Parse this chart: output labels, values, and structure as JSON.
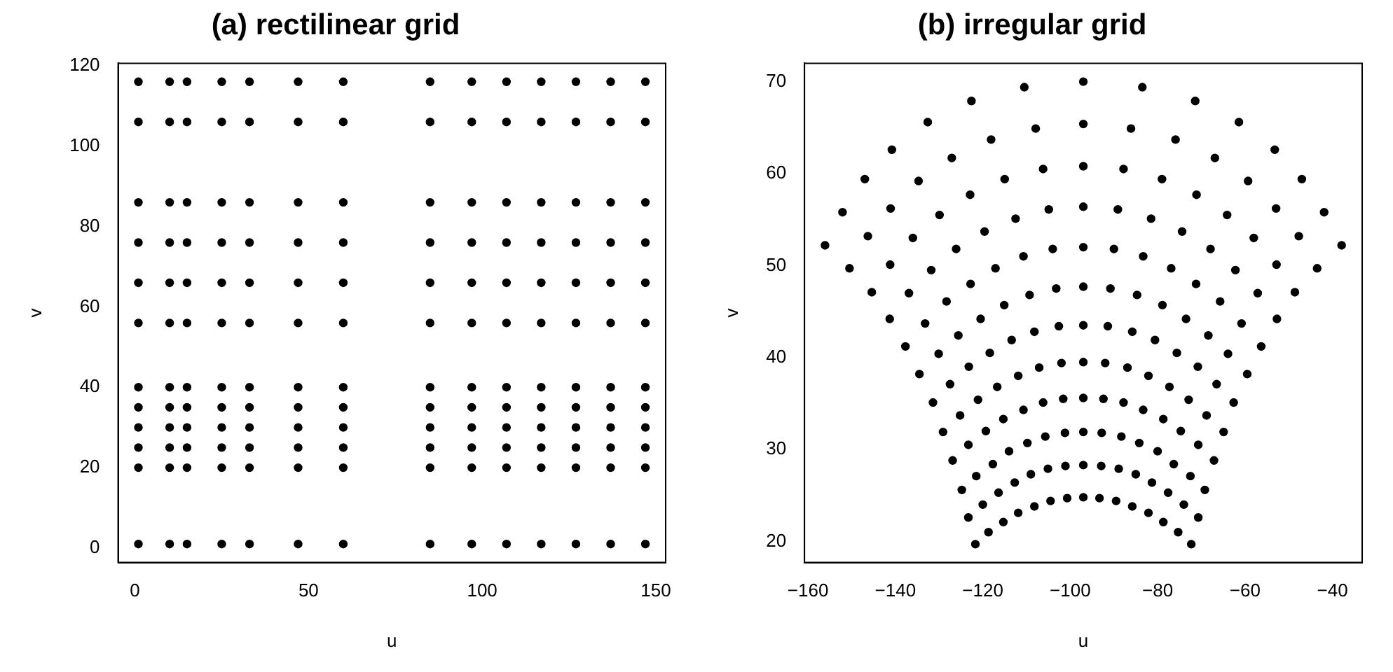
{
  "chart_data": [
    {
      "type": "scatter",
      "title": "(a) rectilinear grid",
      "xlabel": "u",
      "ylabel": "v",
      "marker": "circle",
      "xlim": [
        -4.84,
        152.84
      ],
      "ylim": [
        -3.6,
        120.6
      ],
      "xticks": [
        0,
        50,
        100,
        150
      ],
      "yticks": [
        0,
        20,
        40,
        60,
        80,
        100,
        120
      ],
      "series": [
        {
          "color": "#000000",
          "x": [
            1,
            10,
            15,
            25,
            33,
            47,
            60,
            85,
            97,
            107,
            117,
            127,
            137,
            147,
            1,
            10,
            15,
            25,
            33,
            47,
            60,
            85,
            97,
            107,
            117,
            127,
            137,
            147,
            1,
            10,
            15,
            25,
            33,
            47,
            60,
            85,
            97,
            107,
            117,
            127,
            137,
            147,
            1,
            10,
            15,
            25,
            33,
            47,
            60,
            85,
            97,
            107,
            117,
            127,
            137,
            147,
            1,
            10,
            15,
            25,
            33,
            47,
            60,
            85,
            97,
            107,
            117,
            127,
            137,
            147,
            1,
            10,
            15,
            25,
            33,
            47,
            60,
            85,
            97,
            107,
            117,
            127,
            137,
            147,
            1,
            10,
            15,
            25,
            33,
            47,
            60,
            85,
            97,
            107,
            117,
            127,
            137,
            147,
            1,
            10,
            15,
            25,
            33,
            47,
            60,
            85,
            97,
            107,
            117,
            127,
            137,
            147,
            1,
            10,
            15,
            25,
            33,
            47,
            60,
            85,
            97,
            107,
            117,
            127,
            137,
            147,
            1,
            10,
            15,
            25,
            33,
            47,
            60,
            85,
            97,
            107,
            117,
            127,
            137,
            147,
            1,
            10,
            15,
            25,
            33,
            47,
            60,
            85,
            97,
            107,
            117,
            127,
            137,
            147,
            1,
            10,
            15,
            25,
            33,
            47,
            60,
            85,
            97,
            107,
            117,
            127,
            137,
            147
          ],
          "values": [
            1,
            1,
            1,
            1,
            1,
            1,
            1,
            1,
            1,
            1,
            1,
            1,
            1,
            1,
            20,
            20,
            20,
            20,
            20,
            20,
            20,
            20,
            20,
            20,
            20,
            20,
            20,
            20,
            25,
            25,
            25,
            25,
            25,
            25,
            25,
            25,
            25,
            25,
            25,
            25,
            25,
            25,
            30,
            30,
            30,
            30,
            30,
            30,
            30,
            30,
            30,
            30,
            30,
            30,
            30,
            30,
            35,
            35,
            35,
            35,
            35,
            35,
            35,
            35,
            35,
            35,
            35,
            35,
            35,
            35,
            40,
            40,
            40,
            40,
            40,
            40,
            40,
            40,
            40,
            40,
            40,
            40,
            40,
            40,
            56,
            56,
            56,
            56,
            56,
            56,
            56,
            56,
            56,
            56,
            56,
            56,
            56,
            56,
            66,
            66,
            66,
            66,
            66,
            66,
            66,
            66,
            66,
            66,
            66,
            66,
            66,
            66,
            76,
            76,
            76,
            76,
            76,
            76,
            76,
            76,
            76,
            76,
            76,
            76,
            76,
            76,
            86,
            86,
            86,
            86,
            86,
            86,
            86,
            86,
            86,
            86,
            86,
            86,
            86,
            86,
            106,
            106,
            106,
            106,
            106,
            106,
            106,
            106,
            106,
            106,
            106,
            106,
            106,
            106,
            116,
            116,
            116,
            116,
            116,
            116,
            116,
            116,
            116,
            116,
            116,
            116,
            116,
            116
          ]
        }
      ]
    },
    {
      "type": "scatter",
      "title": "(b) irregular grid",
      "xlabel": "u",
      "ylabel": "v",
      "marker": "circle",
      "xlim": [
        -160.8,
        -33.2
      ],
      "ylim": [
        17.7,
        72.0
      ],
      "xticks": [
        -160,
        -140,
        -120,
        -100,
        -80,
        -60,
        -40
      ],
      "yticks": [
        20,
        30,
        40,
        50,
        60,
        70
      ],
      "series": [
        {
          "color": "#000000",
          "x": [
            -121.7,
            -118.7,
            -115.3,
            -111.9,
            -108.2,
            -104.5,
            -100.7,
            -97,
            -93.3,
            -89.5,
            -85.8,
            -82.1,
            -78.7,
            -75.3,
            -72.3,
            -123.3,
            -120.0,
            -116.4,
            -112.7,
            -109.0,
            -105.1,
            -101.1,
            -97,
            -92.9,
            -88.9,
            -85.0,
            -81.3,
            -77.6,
            -74.0,
            -70.7,
            -124.8,
            -121.5,
            -117.7,
            -114.0,
            -109.8,
            -105.7,
            -101.2,
            -97,
            -92.8,
            -88.3,
            -84.2,
            -80.0,
            -76.3,
            -72.5,
            -69.2,
            -126.9,
            -123.3,
            -119.3,
            -115.3,
            -110.7,
            -106.2,
            -101.6,
            -97,
            -92.4,
            -87.8,
            -83.3,
            -78.7,
            -74.7,
            -70.7,
            -67.1,
            -129.1,
            -125.2,
            -121.1,
            -116.7,
            -111.9,
            -107.1,
            -102.0,
            -97,
            -92.0,
            -86.9,
            -82.1,
            -77.3,
            -72.9,
            -68.8,
            -64.9,
            -131.4,
            -127.5,
            -123.2,
            -118.4,
            -113.4,
            -108.2,
            -102.6,
            -97,
            -91.4,
            -85.8,
            -80.6,
            -75.6,
            -70.8,
            -66.5,
            -62.6,
            -134.5,
            -130.1,
            -125.6,
            -120.5,
            -115.1,
            -109.3,
            -103.2,
            -97,
            -90.8,
            -84.7,
            -78.9,
            -73.5,
            -68.4,
            -63.9,
            -59.5,
            -137.7,
            -133.2,
            -128.3,
            -122.8,
            -117.1,
            -110.7,
            -104.0,
            -97,
            -90.0,
            -83.3,
            -76.9,
            -71.2,
            -65.7,
            -60.8,
            -56.3,
            -141.3,
            -136.9,
            -131.8,
            -126.1,
            -119.6,
            -112.5,
            -104.9,
            -97,
            -89.1,
            -81.5,
            -74.4,
            -67.9,
            -62.2,
            -57.1,
            -52.7,
            -145.4,
            -141.2,
            -136.0,
            -129.9,
            -122.9,
            -115.0,
            -106.2,
            -97,
            -87.8,
            -79.0,
            -71.1,
            -64.1,
            -58.0,
            -52.8,
            -48.6,
            -150.5,
            -146.3,
            -141.1,
            -134.7,
            -127.1,
            -118.1,
            -107.9,
            -97,
            -86.1,
            -75.9,
            -66.9,
            -59.3,
            -52.9,
            -47.7,
            -43.5,
            -156.1,
            -152.1,
            -147.0,
            -140.8,
            -132.6,
            -122.6,
            -110.5,
            -97,
            -83.5,
            -71.4,
            -61.4,
            -53.2,
            -47.0,
            -41.9,
            -37.9
          ],
          "values": [
            19.7,
            21.0,
            22.1,
            23.1,
            23.8,
            24.4,
            24.7,
            24.8,
            24.7,
            24.4,
            23.8,
            23.1,
            22.1,
            21.0,
            19.7,
            22.6,
            24.0,
            25.3,
            26.4,
            27.3,
            27.9,
            28.2,
            28.3,
            28.2,
            27.9,
            27.3,
            26.4,
            25.3,
            24.0,
            22.6,
            25.6,
            27.1,
            28.4,
            29.8,
            30.7,
            31.4,
            31.8,
            31.9,
            31.8,
            31.4,
            30.7,
            29.8,
            28.4,
            27.1,
            25.6,
            28.8,
            30.5,
            32.0,
            33.3,
            34.3,
            35.1,
            35.5,
            35.6,
            35.5,
            35.1,
            34.3,
            33.3,
            32.0,
            30.5,
            28.8,
            31.9,
            33.7,
            35.4,
            36.8,
            38.0,
            38.9,
            39.4,
            39.5,
            39.4,
            38.9,
            38.0,
            36.8,
            35.4,
            33.7,
            31.9,
            35.1,
            37.1,
            39.0,
            40.5,
            41.9,
            42.8,
            43.4,
            43.5,
            43.4,
            42.8,
            41.9,
            40.5,
            39.0,
            37.1,
            35.1,
            38.2,
            40.4,
            42.4,
            44.2,
            45.7,
            46.8,
            47.5,
            47.7,
            47.5,
            46.8,
            45.7,
            44.2,
            42.4,
            40.4,
            38.2,
            41.2,
            43.7,
            46.1,
            48.0,
            49.7,
            51.0,
            51.8,
            52.0,
            51.8,
            51.0,
            49.7,
            48.0,
            46.1,
            43.7,
            41.2,
            44.2,
            47.0,
            49.5,
            51.8,
            53.7,
            55.1,
            56.1,
            56.4,
            56.1,
            55.1,
            53.7,
            51.8,
            49.5,
            47.0,
            44.2,
            47.1,
            50.1,
            53.0,
            55.5,
            57.7,
            59.4,
            60.5,
            60.8,
            60.5,
            59.4,
            57.7,
            55.5,
            53.0,
            50.1,
            47.1,
            49.7,
            53.2,
            56.2,
            59.2,
            61.7,
            63.7,
            64.9,
            65.4,
            64.9,
            63.7,
            61.7,
            59.2,
            56.2,
            53.2,
            49.7,
            52.2,
            55.8,
            59.4,
            62.6,
            65.6,
            67.9,
            69.4,
            70.0,
            69.4,
            67.9,
            65.6,
            62.6,
            59.4,
            55.8,
            52.2
          ]
        }
      ]
    }
  ]
}
